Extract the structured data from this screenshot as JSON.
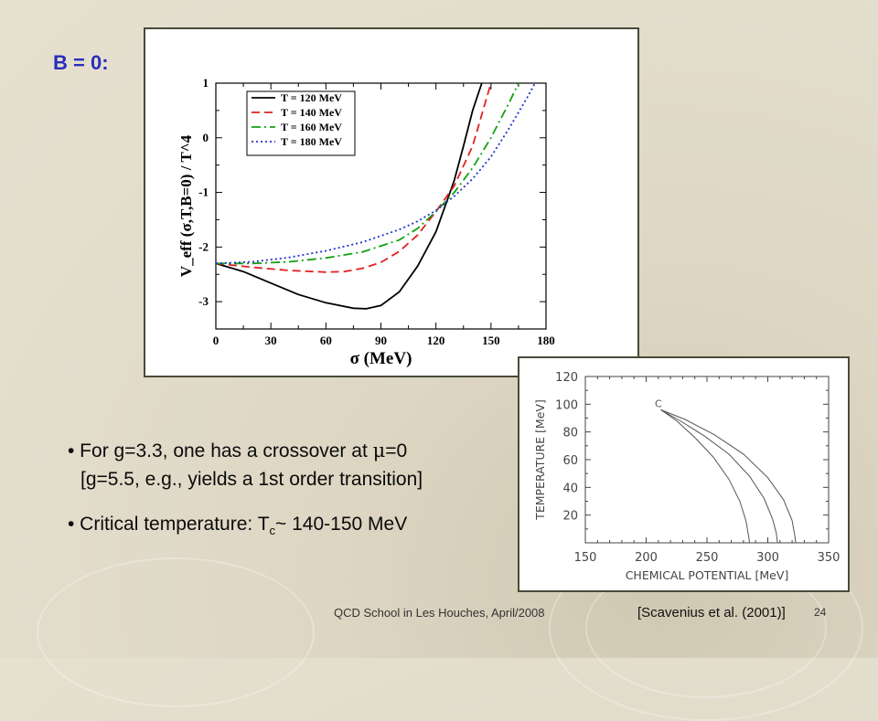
{
  "slide": {
    "title": "B = 0:",
    "bullets": [
      {
        "prefix": "• For g=3.3, one has a crossover at ",
        "symbol": "μ",
        "suffix": "=0"
      },
      {
        "text": "[g=5.5, e.g., yields a 1st order transition]"
      },
      {
        "prefix": "• Critical temperature: T",
        "sub": "c",
        "suffix": "~ 140-150 MeV"
      }
    ],
    "footer": "QCD School in Les Houches, April/2008",
    "page_number": "24",
    "citation": "[Scavenius et al. (2001)]"
  },
  "chart_data": [
    {
      "type": "line",
      "xlabel": "σ (MeV)",
      "ylabel": "V_eff (σ,T,B=0) / T^4",
      "xlim": [
        0,
        180
      ],
      "ylim": [
        -3.5,
        1
      ],
      "x_ticks": [
        "0",
        "30",
        "60",
        "90",
        "120",
        "150",
        "180"
      ],
      "y_ticks": [
        "1",
        "0",
        "-1",
        "-2",
        "-3"
      ],
      "legend_position": "top-left",
      "colors": [
        "#000000",
        "#e02020",
        "#10a010",
        "#2030d0"
      ],
      "series": [
        {
          "name": "T = 120 MeV",
          "style": "solid",
          "x": [
            0,
            15,
            30,
            45,
            60,
            75,
            82,
            90,
            100,
            110,
            120,
            130,
            135,
            140,
            145
          ],
          "y": [
            -2.3,
            -2.45,
            -2.66,
            -2.87,
            -3.02,
            -3.12,
            -3.13,
            -3.07,
            -2.82,
            -2.35,
            -1.72,
            -0.78,
            -0.15,
            0.5,
            1.0
          ]
        },
        {
          "name": "T = 140 MeV",
          "style": "dashed",
          "x": [
            0,
            20,
            40,
            60,
            70,
            80,
            90,
            100,
            110,
            120,
            130,
            140,
            150
          ],
          "y": [
            -2.3,
            -2.37,
            -2.43,
            -2.46,
            -2.45,
            -2.39,
            -2.28,
            -2.08,
            -1.78,
            -1.35,
            -0.88,
            -0.15,
            1.0
          ]
        },
        {
          "name": "T = 160 MeV",
          "style": "dashdot",
          "x": [
            0,
            20,
            40,
            60,
            80,
            100,
            110,
            120,
            130,
            140,
            150,
            160,
            165
          ],
          "y": [
            -2.3,
            -2.3,
            -2.27,
            -2.2,
            -2.09,
            -1.87,
            -1.66,
            -1.35,
            -1.0,
            -0.55,
            0.0,
            0.65,
            1.0
          ]
        },
        {
          "name": "T = 180 MeV",
          "style": "dotted",
          "x": [
            0,
            20,
            40,
            60,
            80,
            100,
            110,
            120,
            130,
            140,
            150,
            160,
            170,
            174
          ],
          "y": [
            -2.3,
            -2.27,
            -2.19,
            -2.07,
            -1.91,
            -1.68,
            -1.53,
            -1.33,
            -1.07,
            -0.75,
            -0.35,
            0.18,
            0.75,
            1.0
          ]
        }
      ]
    },
    {
      "type": "line",
      "xlabel": "CHEMICAL POTENTIAL [MeV]",
      "ylabel": "TEMPERATURE [MeV]",
      "xlim": [
        150,
        350
      ],
      "ylim": [
        0,
        120
      ],
      "x_ticks": [
        "150",
        "200",
        "250",
        "300",
        "350"
      ],
      "y_ticks": [
        "20",
        "40",
        "60",
        "80",
        "100",
        "120"
      ],
      "annotation": "C",
      "series": [
        {
          "x": [
            212,
            225,
            240,
            255,
            268,
            277,
            282,
            284,
            285
          ],
          "y": [
            96,
            88,
            76,
            62,
            46,
            30,
            16,
            6,
            0
          ]
        },
        {
          "x": [
            212,
            228,
            248,
            268,
            285,
            297,
            304,
            307,
            308
          ],
          "y": [
            96,
            88,
            77,
            64,
            48,
            32,
            17,
            7,
            0
          ]
        },
        {
          "x": [
            212,
            232,
            256,
            280,
            300,
            313,
            320,
            322,
            323
          ],
          "y": [
            96,
            89,
            78,
            64,
            47,
            31,
            16,
            6,
            0
          ]
        }
      ]
    }
  ]
}
